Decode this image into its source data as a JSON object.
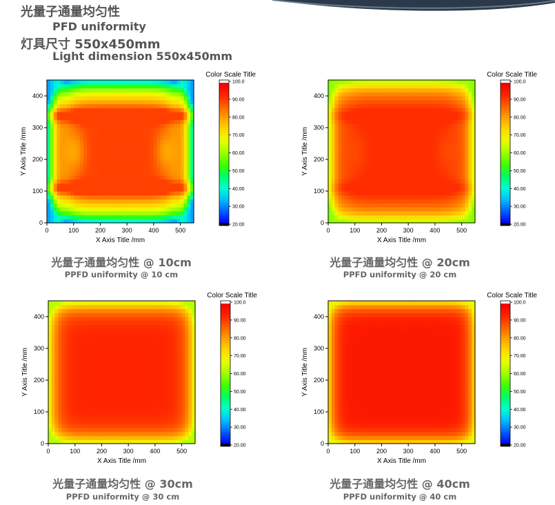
{
  "header": {
    "title_cn": "光量子通量均匀性",
    "title_en": "PFD uniformity",
    "dimension_cn": "灯具尺寸 550x450mm",
    "dimension_en": "Light dimension 550x450mm"
  },
  "colors": {
    "scale": [
      "#000000",
      "#0000ff",
      "#0060ff",
      "#00c0ff",
      "#00ffd0",
      "#00ff60",
      "#40ff00",
      "#a0ff00",
      "#e8ff00",
      "#ffd800",
      "#ffa000",
      "#ff6000",
      "#ff2000",
      "#f00000",
      "#ffffff"
    ],
    "text": "#555555",
    "swoosh": "#2b3a4a"
  },
  "chart_data": [
    {
      "type": "heatmap",
      "xlabel": "X Axis Title /mm",
      "ylabel": "Y Axis Title /mm",
      "xlim": [
        0,
        550
      ],
      "ylim": [
        0,
        450
      ],
      "xticks": [
        "0",
        "100",
        "200",
        "300",
        "400",
        "500"
      ],
      "yticks": [
        "0",
        "100",
        "200",
        "300",
        "400"
      ],
      "colorbar_title": "Color Scale Title",
      "colorbar_ticks": [
        "100.0",
        "90.00",
        "80.00",
        "70.00",
        "60.00",
        "50.00",
        "40.00",
        "30.00",
        "20.00"
      ],
      "colorbar_range": [
        20,
        100
      ],
      "caption_cn": "光量子通量均匀性 @ 10cm",
      "caption_en": "PPFD uniformity @ 10 cm",
      "height_cm": 10,
      "value_range": [
        30,
        90
      ]
    },
    {
      "type": "heatmap",
      "xlabel": "X Axis Title /mm",
      "ylabel": "Y Axis Title /mm",
      "xlim": [
        0,
        550
      ],
      "ylim": [
        0,
        450
      ],
      "xticks": [
        "0",
        "100",
        "200",
        "300",
        "400",
        "500"
      ],
      "yticks": [
        "0",
        "100",
        "200",
        "300",
        "400"
      ],
      "colorbar_title": "Color Scale Title",
      "colorbar_ticks": [
        "100.0",
        "90.00",
        "80.00",
        "70.00",
        "60.00",
        "50.00",
        "40.00",
        "30.00",
        "20.00"
      ],
      "colorbar_range": [
        20,
        100
      ],
      "caption_cn": "光量子通量均匀性 @ 20cm",
      "caption_en": "PPFD uniformity @ 20 cm",
      "height_cm": 20,
      "value_range": [
        58,
        92
      ]
    },
    {
      "type": "heatmap",
      "xlabel": "X Axis Title /mm",
      "ylabel": "Y Axis Title /mm",
      "xlim": [
        0,
        550
      ],
      "ylim": [
        0,
        450
      ],
      "xticks": [
        "0",
        "100",
        "200",
        "300",
        "400",
        "500"
      ],
      "yticks": [
        "0",
        "100",
        "200",
        "300",
        "400"
      ],
      "colorbar_title": "Color Scale Title",
      "colorbar_ticks": [
        "100.0",
        "90.00",
        "80.00",
        "70.00",
        "60.00",
        "50.00",
        "40.00",
        "30.00",
        "20.00"
      ],
      "colorbar_range": [
        20,
        100
      ],
      "caption_cn": "光量子通量均匀性 @ 30cm",
      "caption_en": "PPFD uniformity @ 30 cm",
      "height_cm": 30,
      "value_range": [
        62,
        93
      ]
    },
    {
      "type": "heatmap",
      "xlabel": "X Axis Title /mm",
      "ylabel": "Y Axis Title /mm",
      "xlim": [
        0,
        550
      ],
      "ylim": [
        0,
        450
      ],
      "xticks": [
        "0",
        "100",
        "200",
        "300",
        "400",
        "500"
      ],
      "yticks": [
        "0",
        "100",
        "200",
        "300",
        "400"
      ],
      "colorbar_title": "Color Scale Title",
      "colorbar_ticks": [
        "100.0",
        "90.00",
        "80.00",
        "70.00",
        "60.00",
        "50.00",
        "40.00",
        "30.00",
        "20.00"
      ],
      "colorbar_range": [
        20,
        100
      ],
      "caption_cn": "光量子通量均匀性 @ 40cm",
      "caption_en": "PPFD uniformity @ 40 cm",
      "height_cm": 40,
      "value_range": [
        68,
        95
      ]
    }
  ]
}
